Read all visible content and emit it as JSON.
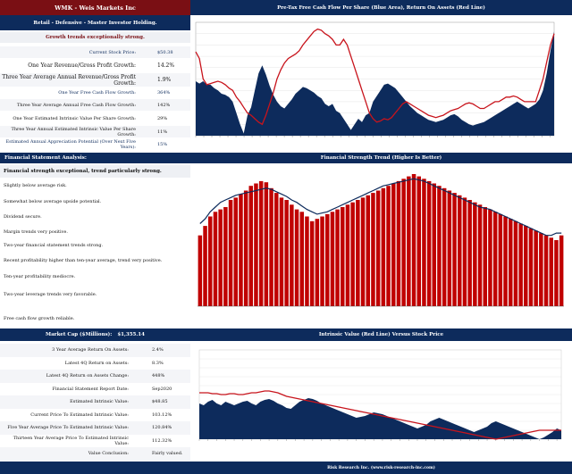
{
  "header": {
    "company": "WMK - Weis Markets Inc",
    "classification": "Retail - Defensive - Master Investor Holding.",
    "growth_summary": "Growth trends exceptionally strong."
  },
  "valuation_metrics": [
    {
      "label": "Current Stock Price:",
      "value": "$50.38"
    },
    {
      "label": "One Year Revenue/Gross Profit Growth:",
      "value": "14.2%"
    },
    {
      "label": "Three Year Average Annual Revenue/Gross Profit Growth:",
      "value": "1.9%"
    },
    {
      "label": "One Year Free Cash Flow Growth:",
      "value": "364%"
    },
    {
      "label": "Three Year Average Annual Free Cash Flow Growth:",
      "value": "142%"
    },
    {
      "label": "One Year Estimated Intrinsic Value Per Share Growth:",
      "value": "29%"
    },
    {
      "label": "Three Year Annual Estimated Intrinsic Value Per Share Growth:",
      "value": "11%"
    },
    {
      "label": "Estimated Annual Appreciation Potential (Over Next Five Years):",
      "value": "15%"
    }
  ],
  "fsa": {
    "title": "Financial Statement Analysis:",
    "headline": "Financial strength exceptional, trend particularly strong.",
    "items": [
      "Slightly below average risk.",
      "Somewhat below average upside potential.",
      "Dividend secure.",
      "Margin trends very positive.",
      "Two-year financial statement trends strong.",
      "Recent profitability higher than ten-year average, trend very positive.",
      "Ten-year profitability mediocre.",
      "Two-year leverage trends very favorable.",
      "Free cash flow growth reliable."
    ]
  },
  "market_cap": {
    "label": "Market Cap ($Millions):",
    "value": "$1,355.14"
  },
  "return_metrics": [
    {
      "label": "3 Year Average Return On Assets:",
      "value": "2.4%"
    },
    {
      "label": "Latest 4Q Return on Assets:",
      "value": "8.3%"
    },
    {
      "label": "Latest 4Q Return on Assets Change:",
      "value": "448%"
    },
    {
      "label": "Financial Statement Report Date:",
      "value": "Sep2020"
    },
    {
      "label": "Estimated Intrinsic Value:",
      "value": "$48.85"
    },
    {
      "label": "Current Price To Estimated Intrinsic Value:",
      "value": "103.12%"
    },
    {
      "label": "Five Year Average Price To Estimated Intrinsic Value:",
      "value": "120.84%"
    },
    {
      "label": "Thirteen Year Average Price To Estimated Intrinsic Value:",
      "value": "112.32%"
    },
    {
      "label": "Value Conclusion:",
      "value": "Fairly valued."
    }
  ],
  "footer": "Risk Research Inc. (www.risk-research-inc.com)",
  "colors": {
    "navy": "#0d2b5c",
    "maroon": "#7a0f14",
    "red": "#c8141c",
    "bar_red": "#c00000"
  },
  "chart_data": [
    {
      "type": "area",
      "title": "Pre-Tax Free Cash Flow Per Share (Blue Area), Return On Assets (Red Line)",
      "series": [
        {
          "values": [
            0.52,
            0.54,
            0.52,
            0.55,
            0.55,
            0.58,
            0.6,
            0.63,
            0.64,
            0.66,
            0.7,
            0.8,
            0.9,
            0.98,
            0.82,
            0.75,
            0.6,
            0.45,
            0.38,
            0.46,
            0.56,
            0.64,
            0.7,
            0.74,
            0.76,
            0.72,
            0.68,
            0.63,
            0.6,
            0.57,
            0.58,
            0.6,
            0.62,
            0.65,
            0.67,
            0.72,
            0.74,
            0.72,
            0.78,
            0.8,
            0.85,
            0.9,
            0.95,
            0.9,
            0.85,
            0.88,
            0.82,
            0.8,
            0.7,
            0.65,
            0.6,
            0.55,
            0.54,
            0.56,
            0.58,
            0.62,
            0.66,
            0.7,
            0.74,
            0.77,
            0.8,
            0.82,
            0.84,
            0.86,
            0.87,
            0.88,
            0.87,
            0.86,
            0.84,
            0.82,
            0.81,
            0.83,
            0.86,
            0.88,
            0.9,
            0.91,
            0.9,
            0.89,
            0.88,
            0.86,
            0.84,
            0.82,
            0.8,
            0.78,
            0.76,
            0.74,
            0.72,
            0.7,
            0.72,
            0.74,
            0.76,
            0.74,
            0.72,
            0.68,
            0.6,
            0.45,
            0.25,
            0.08
          ]
        },
        {
          "values": [
            0.26,
            0.32,
            0.5,
            0.55,
            0.54,
            0.53,
            0.52,
            0.53,
            0.55,
            0.58,
            0.6,
            0.66,
            0.7,
            0.75,
            0.8,
            0.82,
            0.85,
            0.88,
            0.9,
            0.82,
            0.72,
            0.62,
            0.5,
            0.42,
            0.36,
            0.32,
            0.3,
            0.28,
            0.25,
            0.2,
            0.16,
            0.12,
            0.08,
            0.06,
            0.07,
            0.1,
            0.12,
            0.15,
            0.2,
            0.2,
            0.15,
            0.2,
            0.3,
            0.4,
            0.5,
            0.6,
            0.7,
            0.8,
            0.85,
            0.88,
            0.87,
            0.85,
            0.86,
            0.84,
            0.8,
            0.76,
            0.72,
            0.7,
            0.72,
            0.74,
            0.76,
            0.78,
            0.8,
            0.82,
            0.83,
            0.84,
            0.83,
            0.82,
            0.8,
            0.78,
            0.77,
            0.76,
            0.74,
            0.72,
            0.71,
            0.72,
            0.74,
            0.76,
            0.76,
            0.74,
            0.72,
            0.7,
            0.7,
            0.68,
            0.66,
            0.66,
            0.65,
            0.66,
            0.68,
            0.7,
            0.7,
            0.7,
            0.7,
            0.6,
            0.5,
            0.35,
            0.2,
            0.1
          ]
        }
      ]
    },
    {
      "type": "bar",
      "title": "Financial Strength Trend (Higher Is Better)",
      "series": [
        {
          "values": [
            0.6,
            0.68,
            0.76,
            0.8,
            0.82,
            0.84,
            0.9,
            0.92,
            0.95,
            0.98,
            1.02,
            1.04,
            1.06,
            1.05,
            1.0,
            0.96,
            0.92,
            0.9,
            0.86,
            0.82,
            0.8,
            0.76,
            0.72,
            0.74,
            0.76,
            0.78,
            0.8,
            0.82,
            0.84,
            0.86,
            0.88,
            0.9,
            0.92,
            0.94,
            0.96,
            0.98,
            1.0,
            1.02,
            1.04,
            1.06,
            1.08,
            1.1,
            1.12,
            1.1,
            1.08,
            1.06,
            1.04,
            1.02,
            1.0,
            0.98,
            0.96,
            0.94,
            0.92,
            0.9,
            0.88,
            0.86,
            0.84,
            0.82,
            0.8,
            0.78,
            0.76,
            0.74,
            0.72,
            0.7,
            0.68,
            0.66,
            0.64,
            0.62,
            0.6,
            0.58,
            0.56,
            0.6
          ]
        },
        {
          "values": [
            0.7,
            0.74,
            0.8,
            0.84,
            0.88,
            0.9,
            0.92,
            0.94,
            0.95,
            0.96,
            0.97,
            0.98,
            0.99,
            1.0,
            0.99,
            0.97,
            0.95,
            0.93,
            0.9,
            0.88,
            0.85,
            0.82,
            0.8,
            0.78,
            0.79,
            0.8,
            0.82,
            0.84,
            0.86,
            0.88,
            0.9,
            0.92,
            0.94,
            0.96,
            0.98,
            1.0,
            1.02,
            1.03,
            1.04,
            1.05,
            1.06,
            1.07,
            1.08,
            1.07,
            1.06,
            1.04,
            1.02,
            1.0,
            0.98,
            0.96,
            0.94,
            0.92,
            0.9,
            0.88,
            0.86,
            0.84,
            0.83,
            0.82,
            0.8,
            0.78,
            0.76,
            0.74,
            0.72,
            0.7,
            0.68,
            0.66,
            0.64,
            0.62,
            0.6,
            0.6,
            0.62,
            0.62
          ]
        }
      ]
    },
    {
      "type": "area",
      "title": "Intrinsic Value (Red Line) Versus Stock Price",
      "series": [
        {
          "values": [
            0.6,
            0.62,
            0.58,
            0.56,
            0.6,
            0.62,
            0.58,
            0.6,
            0.62,
            0.6,
            0.58,
            0.57,
            0.6,
            0.62,
            0.58,
            0.56,
            0.55,
            0.57,
            0.6,
            0.62,
            0.65,
            0.66,
            0.62,
            0.58,
            0.56,
            0.54,
            0.55,
            0.57,
            0.6,
            0.62,
            0.64,
            0.66,
            0.68,
            0.7,
            0.72,
            0.74,
            0.76,
            0.75,
            0.74,
            0.72,
            0.7,
            0.71,
            0.72,
            0.74,
            0.76,
            0.78,
            0.8,
            0.82,
            0.84,
            0.86,
            0.88,
            0.86,
            0.84,
            0.8,
            0.78,
            0.76,
            0.78,
            0.8,
            0.82,
            0.84,
            0.86,
            0.88,
            0.9,
            0.92,
            0.9,
            0.88,
            0.86,
            0.82,
            0.8,
            0.82,
            0.84,
            0.86,
            0.88,
            0.9,
            0.92,
            0.94,
            0.96,
            0.98,
            1.0,
            0.98,
            0.95,
            0.92,
            0.88,
            0.9
          ]
        },
        {
          "values": [
            0.48,
            0.48,
            0.48,
            0.49,
            0.49,
            0.5,
            0.5,
            0.49,
            0.49,
            0.5,
            0.5,
            0.49,
            0.48,
            0.48,
            0.47,
            0.46,
            0.46,
            0.47,
            0.48,
            0.5,
            0.52,
            0.53,
            0.54,
            0.55,
            0.56,
            0.57,
            0.58,
            0.59,
            0.6,
            0.61,
            0.62,
            0.63,
            0.64,
            0.65,
            0.66,
            0.67,
            0.68,
            0.69,
            0.7,
            0.71,
            0.72,
            0.73,
            0.74,
            0.75,
            0.76,
            0.77,
            0.78,
            0.79,
            0.8,
            0.81,
            0.82,
            0.83,
            0.84,
            0.85,
            0.86,
            0.87,
            0.88,
            0.89,
            0.9,
            0.91,
            0.92,
            0.93,
            0.94,
            0.95,
            0.96,
            0.97,
            0.98,
            0.99,
            1.0,
            0.99,
            0.98,
            0.97,
            0.96,
            0.95,
            0.94,
            0.93,
            0.92,
            0.91,
            0.9,
            0.9,
            0.9,
            0.9,
            0.9,
            0.9
          ]
        }
      ]
    }
  ]
}
